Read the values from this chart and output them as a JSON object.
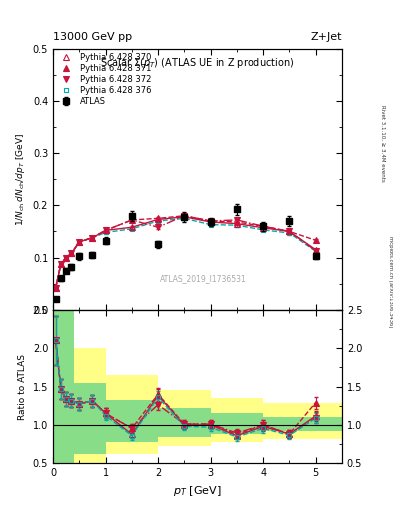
{
  "title_top": "13000 GeV pp",
  "title_right": "Z+Jet",
  "plot_title": "Scalar $\\Sigma(p_T)$ (ATLAS UE in Z production)",
  "ylabel_main": "$1/N_{\\rm ch}\\,dN_{\\rm ch}/dp_T$ [GeV$^{-1}$]",
  "ylabel_ratio": "Ratio to ATLAS",
  "xlabel": "$p_T$ [GeV]",
  "watermark": "ATLAS_2019_I1736531",
  "right_label_top": "Rivet 3.1.10, ≥ 3.4M events",
  "right_label_bot": "mcplots.cern.ch [arXiv:1306.3436]",
  "atlas_x": [
    0.05,
    0.15,
    0.25,
    0.35,
    0.5,
    0.75,
    1.0,
    1.5,
    2.0,
    2.5,
    3.0,
    3.5,
    4.0,
    4.5,
    5.0
  ],
  "atlas_y": [
    0.02,
    0.06,
    0.075,
    0.082,
    0.102,
    0.105,
    0.132,
    0.18,
    0.125,
    0.178,
    0.168,
    0.192,
    0.16,
    0.17,
    0.103
  ],
  "atlas_yerr": [
    0.003,
    0.005,
    0.005,
    0.005,
    0.006,
    0.006,
    0.007,
    0.01,
    0.007,
    0.009,
    0.008,
    0.01,
    0.009,
    0.009,
    0.006
  ],
  "py370_x": [
    0.05,
    0.15,
    0.25,
    0.35,
    0.5,
    0.75,
    1.0,
    1.5,
    2.0,
    2.5,
    3.0,
    3.5,
    4.0,
    4.5,
    5.0
  ],
  "py370_y": [
    0.042,
    0.088,
    0.1,
    0.108,
    0.13,
    0.138,
    0.152,
    0.158,
    0.173,
    0.178,
    0.168,
    0.165,
    0.157,
    0.15,
    0.115
  ],
  "py370_yerr": [
    0.001,
    0.002,
    0.002,
    0.002,
    0.002,
    0.002,
    0.002,
    0.003,
    0.003,
    0.003,
    0.003,
    0.003,
    0.003,
    0.003,
    0.002
  ],
  "py371_x": [
    0.05,
    0.15,
    0.25,
    0.35,
    0.5,
    0.75,
    1.0,
    1.5,
    2.0,
    2.5,
    3.0,
    3.5,
    4.0,
    4.5,
    5.0
  ],
  "py371_y": [
    0.042,
    0.088,
    0.1,
    0.108,
    0.13,
    0.138,
    0.152,
    0.172,
    0.175,
    0.18,
    0.17,
    0.168,
    0.16,
    0.15,
    0.133
  ],
  "py371_yerr": [
    0.001,
    0.002,
    0.002,
    0.002,
    0.002,
    0.002,
    0.002,
    0.003,
    0.003,
    0.003,
    0.003,
    0.003,
    0.003,
    0.003,
    0.002
  ],
  "py372_x": [
    0.05,
    0.15,
    0.25,
    0.35,
    0.5,
    0.75,
    1.0,
    1.5,
    2.0,
    2.5,
    3.0,
    3.5,
    4.0,
    4.5,
    5.0
  ],
  "py372_y": [
    0.042,
    0.088,
    0.1,
    0.108,
    0.13,
    0.138,
    0.152,
    0.172,
    0.158,
    0.18,
    0.17,
    0.172,
    0.16,
    0.15,
    0.113
  ],
  "py372_yerr": [
    0.001,
    0.002,
    0.002,
    0.002,
    0.002,
    0.002,
    0.002,
    0.003,
    0.003,
    0.003,
    0.003,
    0.003,
    0.003,
    0.003,
    0.002
  ],
  "py376_x": [
    0.05,
    0.15,
    0.25,
    0.35,
    0.5,
    0.75,
    1.0,
    1.5,
    2.0,
    2.5,
    3.0,
    3.5,
    4.0,
    4.5,
    5.0
  ],
  "py376_y": [
    0.042,
    0.088,
    0.1,
    0.108,
    0.13,
    0.138,
    0.148,
    0.155,
    0.17,
    0.175,
    0.163,
    0.162,
    0.153,
    0.147,
    0.112
  ],
  "py376_yerr": [
    0.001,
    0.002,
    0.002,
    0.002,
    0.002,
    0.002,
    0.002,
    0.003,
    0.003,
    0.003,
    0.003,
    0.003,
    0.003,
    0.003,
    0.002
  ],
  "ylim_main": [
    0.0,
    0.5
  ],
  "ylim_ratio": [
    0.5,
    2.5
  ],
  "xlim": [
    0.0,
    5.5
  ],
  "color_370": "#c8143c",
  "color_371": "#c8143c",
  "color_372": "#c8143c",
  "color_376": "#00aaaa",
  "band_edges": [
    0.0,
    0.4,
    1.0,
    2.0,
    3.0,
    4.0,
    5.5
  ],
  "yellow_top": [
    2.5,
    2.0,
    1.65,
    1.45,
    1.35,
    1.28
  ],
  "yellow_bot": [
    0.5,
    0.45,
    0.62,
    0.72,
    0.78,
    0.82
  ],
  "green_top": [
    2.5,
    1.55,
    1.32,
    1.22,
    1.15,
    1.1
  ],
  "green_bot": [
    0.5,
    0.62,
    0.78,
    0.84,
    0.88,
    0.92
  ]
}
